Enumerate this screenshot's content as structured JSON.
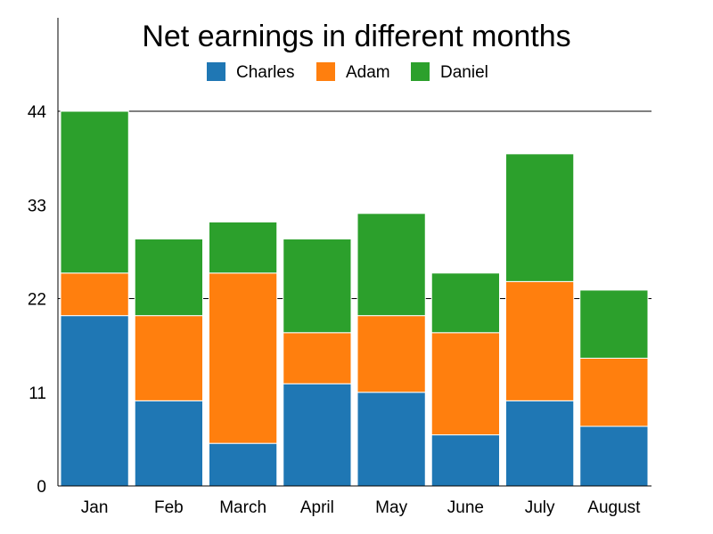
{
  "chart_data": {
    "type": "bar",
    "stacked": true,
    "title": "Net earnings in different months",
    "xlabel": "",
    "ylabel": "",
    "categories": [
      "Jan",
      "Feb",
      "March",
      "April",
      "May",
      "June",
      "July",
      "August"
    ],
    "series": [
      {
        "name": "Charles",
        "color": "#1f77b4",
        "values": [
          20,
          10,
          5,
          12,
          11,
          6,
          10,
          7
        ]
      },
      {
        "name": "Adam",
        "color": "#ff7f0e",
        "values": [
          5,
          10,
          20,
          6,
          9,
          12,
          14,
          8
        ]
      },
      {
        "name": "Daniel",
        "color": "#2ca02c",
        "values": [
          19,
          9,
          6,
          11,
          12,
          7,
          15,
          8
        ]
      }
    ],
    "yticks": [
      "0",
      "11",
      "22",
      "33",
      "44"
    ],
    "ylim": [
      0,
      44
    ],
    "grid": "horizontal lines at 22 and 44",
    "legend": "top-center"
  }
}
